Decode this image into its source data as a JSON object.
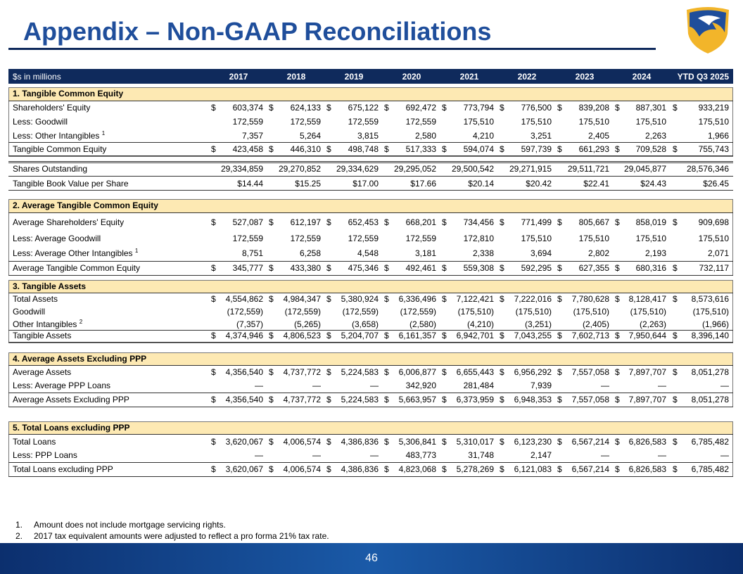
{
  "header": {
    "title": "Appendix – Non-GAAP Reconciliations"
  },
  "table": {
    "unit_label": "$s in millions",
    "columns": [
      "2017",
      "2018",
      "2019",
      "2020",
      "2021",
      "2022",
      "2023",
      "2024",
      "YTD Q3 2025"
    ],
    "sections": [
      {
        "title": "1. Tangible Common Equity",
        "rows": [
          {
            "label": "Shareholders' Equity",
            "symbol": "$",
            "values": [
              "603,374",
              "624,133",
              "675,122",
              "692,472",
              "773,794",
              "776,500",
              "839,208",
              "887,301",
              "933,219"
            ]
          },
          {
            "label": "Less: Goodwill",
            "values": [
              "172,559",
              "172,559",
              "172,559",
              "172,559",
              "175,510",
              "175,510",
              "175,510",
              "175,510",
              "175,510"
            ]
          },
          {
            "label": "Less: Other Intangibles",
            "note": "1",
            "values": [
              "7,357",
              "5,264",
              "3,815",
              "2,580",
              "4,210",
              "3,251",
              "2,405",
              "2,263",
              "1,966"
            ]
          },
          {
            "label": "Tangible Common Equity",
            "symbol": "$",
            "values": [
              "423,458",
              "446,310",
              "498,748",
              "517,333",
              "594,074",
              "597,739",
              "661,293",
              "709,528",
              "755,743"
            ]
          }
        ]
      },
      {
        "rows": [
          {
            "label": "Shares Outstanding",
            "values": [
              "29,334,859",
              "29,270,852",
              "29,334,629",
              "29,295,052",
              "29,500,542",
              "29,271,915",
              "29,511,721",
              "29,045,877",
              "28,576,346"
            ]
          },
          {
            "label": "Tangible Book Value per Share",
            "values": [
              "$14.44",
              "$15.25",
              "$17.00",
              "$17.66",
              "$20.14",
              "$20.42",
              "$22.41",
              "$24.43",
              "$26.45"
            ]
          }
        ]
      },
      {
        "title": "2. Average Tangible Common Equity",
        "rows": [
          {
            "label": "Average Shareholders' Equity",
            "symbol": "$",
            "values": [
              "527,087",
              "612,197",
              "652,453",
              "668,201",
              "734,456",
              "771,499",
              "805,667",
              "858,019",
              "909,698"
            ]
          },
          {
            "label": "Less: Average Goodwill",
            "values": [
              "172,559",
              "172,559",
              "172,559",
              "172,559",
              "172,810",
              "175,510",
              "175,510",
              "175,510",
              "175,510"
            ]
          },
          {
            "label": "Less: Average Other Intangibles",
            "note": "1",
            "values": [
              "8,751",
              "6,258",
              "4,548",
              "3,181",
              "2,338",
              "3,694",
              "2,802",
              "2,193",
              "2,071"
            ]
          },
          {
            "label": "Average Tangible Common Equity",
            "symbol": "$",
            "values": [
              "345,777",
              "433,380",
              "475,346",
              "492,461",
              "559,308",
              "592,295",
              "627,355",
              "680,316",
              "732,117"
            ]
          }
        ]
      },
      {
        "title": "3. Tangible Assets",
        "rows": [
          {
            "label": "Total Assets",
            "symbol": "$",
            "values": [
              "4,554,862",
              "4,984,347",
              "5,380,924",
              "6,336,496",
              "7,122,421",
              "7,222,016",
              "7,780,628",
              "8,128,417",
              "8,573,616"
            ]
          },
          {
            "label": "Goodwill",
            "values": [
              "(172,559)",
              "(172,559)",
              "(172,559)",
              "(172,559)",
              "(175,510)",
              "(175,510)",
              "(175,510)",
              "(175,510)",
              "(175,510)"
            ]
          },
          {
            "label": "Other Intangibles",
            "note": "2",
            "values": [
              "(7,357)",
              "(5,265)",
              "(3,658)",
              "(2,580)",
              "(4,210)",
              "(3,251)",
              "(2,405)",
              "(2,263)",
              "(1,966)"
            ]
          },
          {
            "label": "Tangible Assets",
            "symbol": "$",
            "values": [
              "4,374,946",
              "4,806,523",
              "5,204,707",
              "6,161,357",
              "6,942,701",
              "7,043,255",
              "7,602,713",
              "7,950,644",
              "8,396,140"
            ]
          }
        ]
      },
      {
        "title": "4. Average Assets Excluding PPP",
        "rows": [
          {
            "label": "Average Assets",
            "symbol": "$",
            "values": [
              "4,356,540",
              "4,737,772",
              "5,224,583",
              "6,006,877",
              "6,655,443",
              "6,956,292",
              "7,557,058",
              "7,897,707",
              "8,051,278"
            ]
          },
          {
            "label": "Less: Average PPP Loans",
            "values": [
              "—",
              "—",
              "—",
              "342,920",
              "281,484",
              "7,939",
              "—",
              "—",
              "—"
            ]
          },
          {
            "label": "Average Assets Excluding PPP",
            "symbol": "$",
            "values": [
              "4,356,540",
              "4,737,772",
              "5,224,583",
              "5,663,957",
              "6,373,959",
              "6,948,353",
              "7,557,058",
              "7,897,707",
              "8,051,278"
            ]
          }
        ]
      },
      {
        "title": "5. Total Loans excluding PPP",
        "rows": [
          {
            "label": "Total Loans",
            "symbol": "$",
            "values": [
              "3,620,067",
              "4,006,574",
              "4,386,836",
              "5,306,841",
              "5,310,017",
              "6,123,230",
              "6,567,214",
              "6,826,583",
              "6,785,482"
            ]
          },
          {
            "label": "Less: PPP Loans",
            "values": [
              "—",
              "—",
              "—",
              "483,773",
              "31,748",
              "2,147",
              "—",
              "—",
              "—"
            ]
          },
          {
            "label": "Total Loans excluding PPP",
            "symbol": "$",
            "values": [
              "3,620,067",
              "4,006,574",
              "4,386,836",
              "4,823,068",
              "5,278,269",
              "6,121,083",
              "6,567,214",
              "6,826,583",
              "6,785,482"
            ]
          }
        ]
      }
    ]
  },
  "footnotes": [
    {
      "number": "1.",
      "text": "Amount does not include mortgage servicing rights."
    },
    {
      "number": "2.",
      "text": "2017 tax equivalent amounts were adjusted to reflect a pro forma 21% tax rate."
    }
  ],
  "footer": {
    "page_number": "46"
  }
}
